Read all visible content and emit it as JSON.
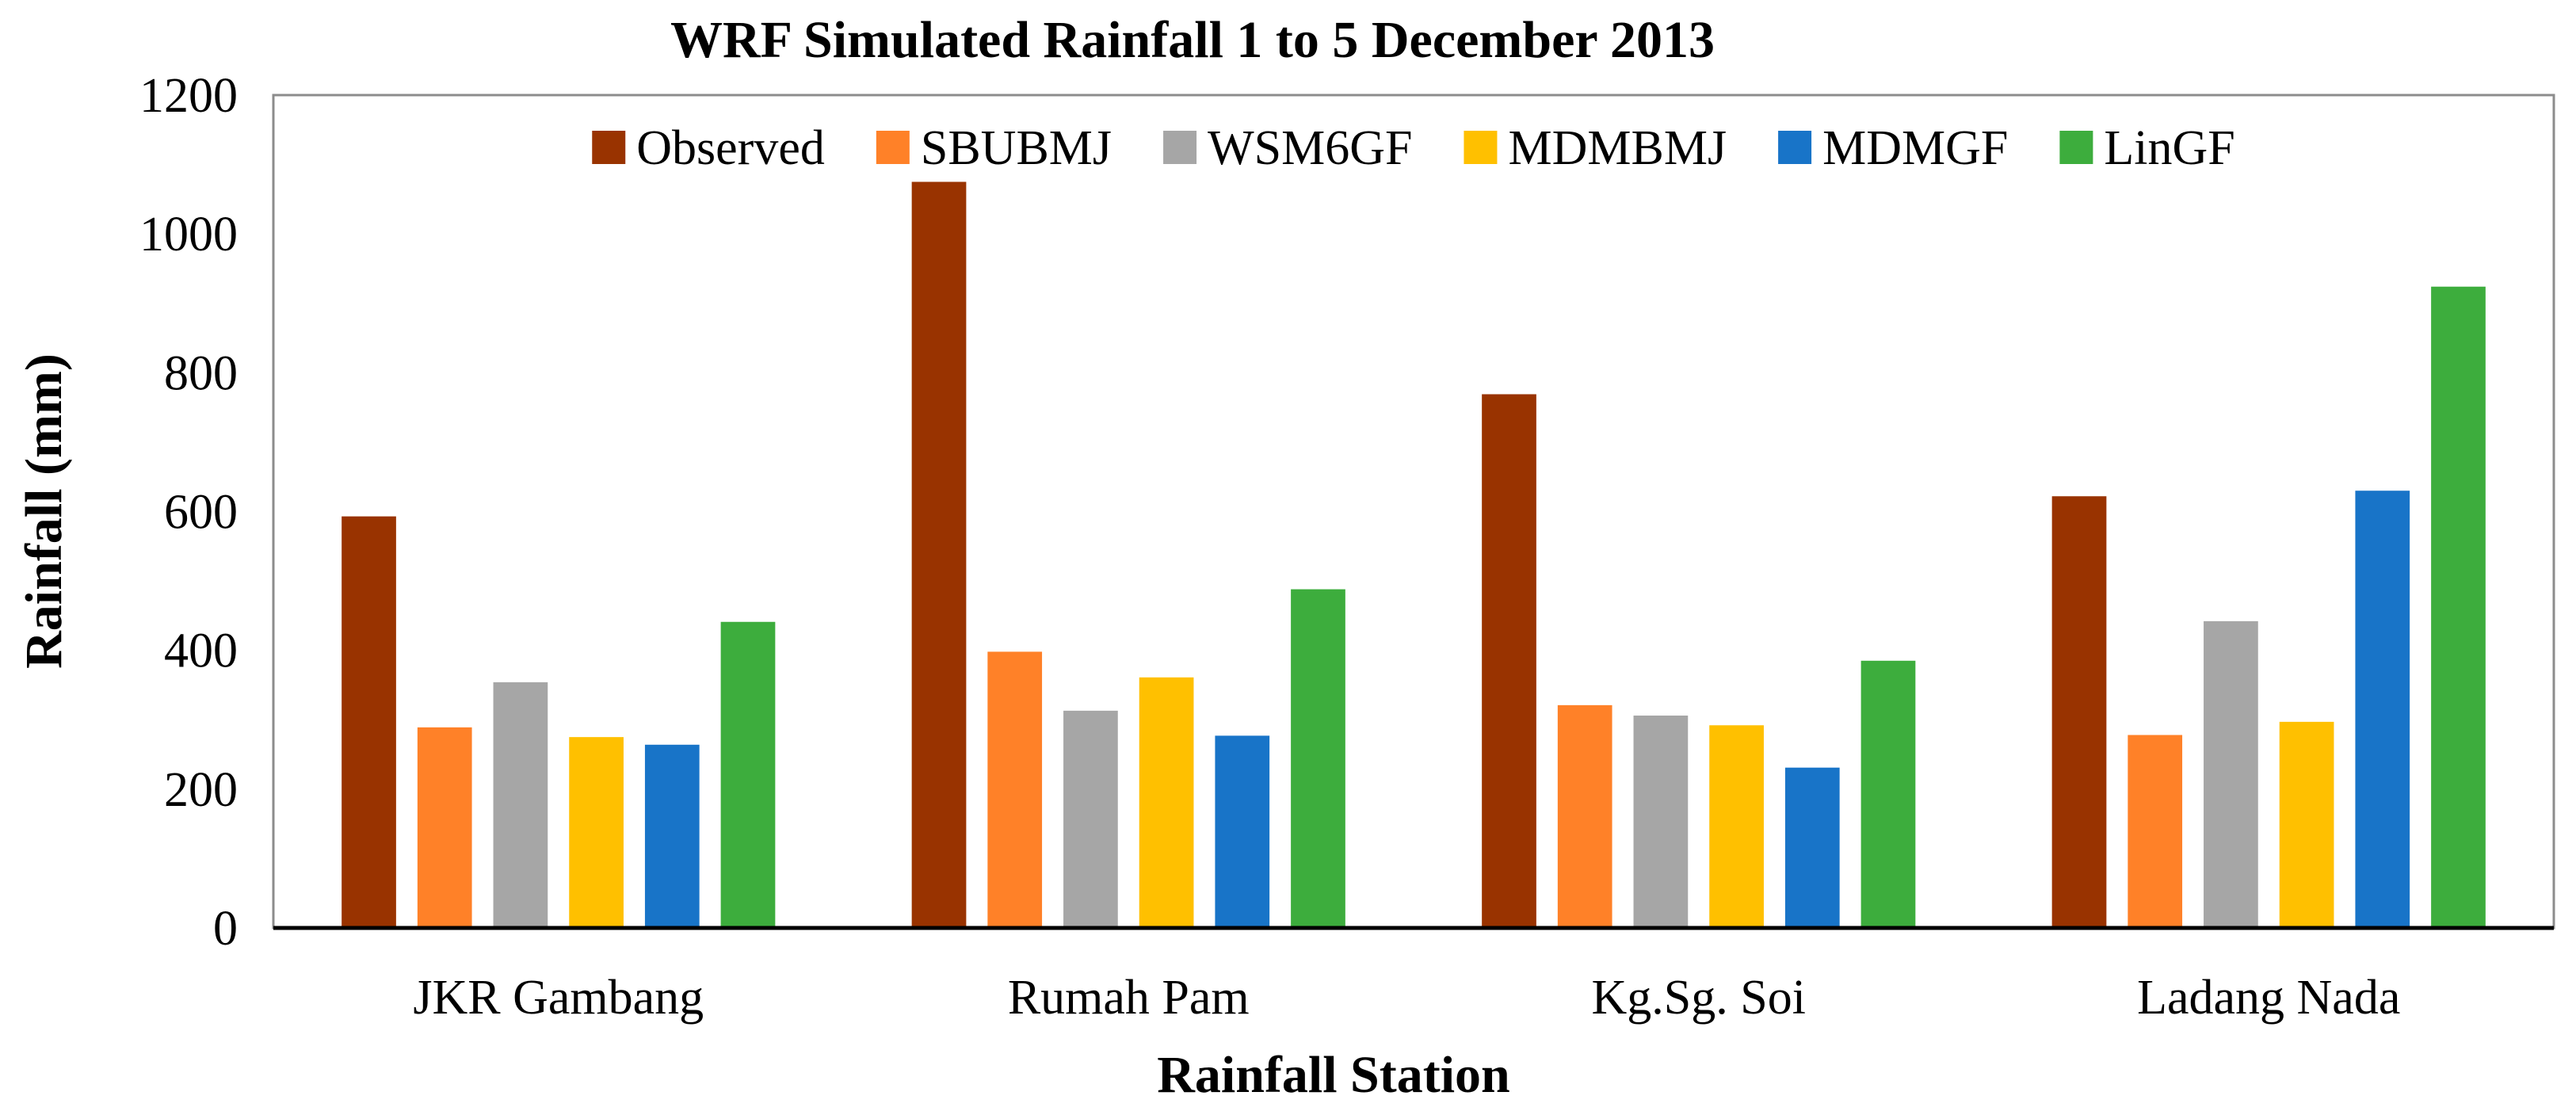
{
  "chart_data": {
    "type": "bar",
    "title": "WRF Simulated Rainfall 1 to 5 December 2013",
    "xlabel": "Rainfall Station",
    "ylabel": "Rainfall (mm)",
    "ylim": [
      0,
      1200
    ],
    "yticks": [
      0,
      200,
      400,
      600,
      800,
      1000,
      1200
    ],
    "ytick_labels": [
      "0",
      "200",
      "400",
      "600",
      "800",
      "1000",
      "1200"
    ],
    "grid": false,
    "legend_position": "top",
    "categories": [
      "JKR Gambang",
      "Rumah Pam",
      "Kg.Sg. Soi",
      "Ladang Nada"
    ],
    "series": [
      {
        "name": "Observed",
        "color": "#993300",
        "values": [
          593,
          1075,
          769,
          622
        ]
      },
      {
        "name": "SBUBMJ",
        "color": "#FF8128",
        "values": [
          289,
          398,
          321,
          278
        ]
      },
      {
        "name": "WSM6GF",
        "color": "#A6A6A6",
        "values": [
          354,
          313,
          306,
          442
        ]
      },
      {
        "name": "MDMBMJ",
        "color": "#FFC000",
        "values": [
          275,
          361,
          292,
          297
        ]
      },
      {
        "name": "MDMGF",
        "color": "#1874C8",
        "values": [
          264,
          277,
          231,
          630
        ]
      },
      {
        "name": "LinGF",
        "color": "#3DAD3D",
        "values": [
          441,
          488,
          385,
          924
        ]
      }
    ]
  }
}
